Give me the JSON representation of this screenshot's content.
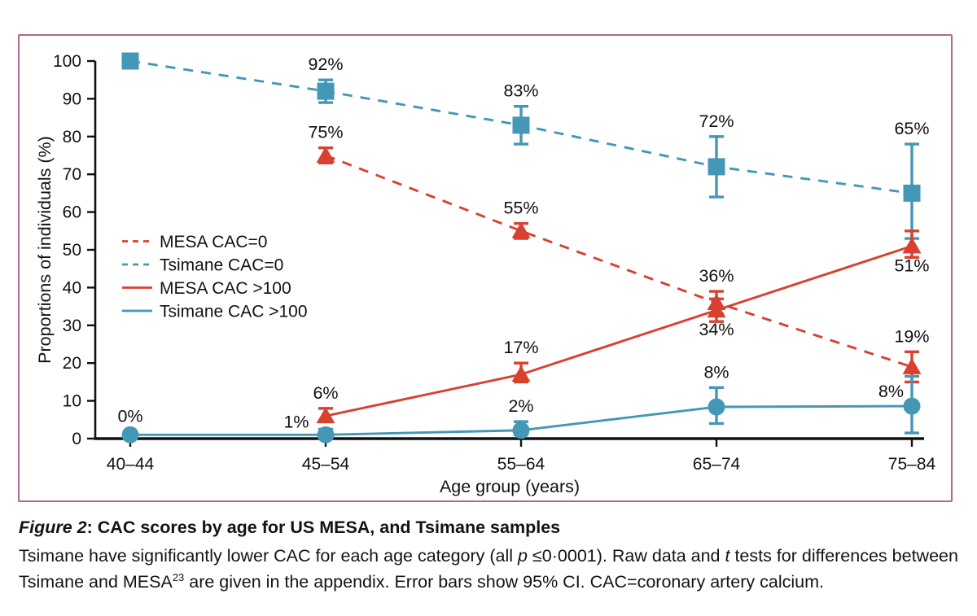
{
  "caption": {
    "figure_label": "Figure 2",
    "title_rest": ": CAC scores by age for US MESA, and Tsimane samples",
    "body_1": "Tsimane have significantly lower CAC for each age category (all ",
    "p_italic": "p",
    "body_2": " ≤0·0001). Raw data and ",
    "t_italic": "t",
    "body_3": " tests for differences between Tsimane and MESA",
    "superscript": "23",
    "body_4": " are given in the appendix. Error bars show 95% CI. CAC=coronary artery calcium."
  },
  "panel": {
    "border_color": "#b2688f",
    "background": "#ffffff"
  },
  "chart_data": {
    "type": "line",
    "title": "",
    "xlabel": "Age group (years)",
    "ylabel": "Proportions of individuals (%)",
    "categories": [
      "40–44",
      "45–54",
      "55–64",
      "65–74",
      "75–84"
    ],
    "ylim": [
      0,
      100
    ],
    "y_ticks": [
      0,
      10,
      20,
      30,
      40,
      50,
      60,
      70,
      80,
      90,
      100
    ],
    "grid": false,
    "legend_position": "middle-left",
    "error_bars": "95% CI",
    "colors": {
      "mesa_red": "#d8412f",
      "tsimane_blue": "#4497b5",
      "axis_black": "#111111"
    },
    "series": [
      {
        "name": "MESA CAC=0",
        "color": "#d8412f",
        "dashed": true,
        "marker": "triangle",
        "points": [
          {
            "x": 1,
            "v": 75,
            "ci": [
              73,
              77
            ],
            "label": "75%",
            "label_pos": "above"
          },
          {
            "x": 2,
            "v": 55,
            "ci": [
              53,
              57
            ],
            "label": "55%",
            "label_pos": "above"
          },
          {
            "x": 3,
            "v": 36,
            "ci": [
              33,
              39
            ],
            "label": "36%",
            "label_pos": "above"
          },
          {
            "x": 4,
            "v": 19,
            "ci": [
              15,
              23
            ],
            "label": "19%",
            "label_pos": "above"
          }
        ]
      },
      {
        "name": "Tsimane CAC=0",
        "color": "#4497b5",
        "dashed": true,
        "marker": "square",
        "points": [
          {
            "x": 0,
            "v": 100,
            "ci": null,
            "label": null,
            "label_pos": "above"
          },
          {
            "x": 1,
            "v": 92,
            "ci": [
              89,
              95
            ],
            "label": "92%",
            "label_pos": "above"
          },
          {
            "x": 2,
            "v": 83,
            "ci": [
              78,
              88
            ],
            "label": "83%",
            "label_pos": "above"
          },
          {
            "x": 3,
            "v": 72,
            "ci": [
              64,
              80
            ],
            "label": "72%",
            "label_pos": "above"
          },
          {
            "x": 4,
            "v": 65,
            "ci": [
              53,
              78
            ],
            "label": "65%",
            "label_pos": "above"
          }
        ]
      },
      {
        "name": "MESA CAC >100",
        "color": "#d8412f",
        "dashed": false,
        "marker": "triangle",
        "points": [
          {
            "x": 1,
            "v": 6,
            "ci": [
              4.5,
              8
            ],
            "label": "6%",
            "label_pos": "above"
          },
          {
            "x": 2,
            "v": 17,
            "ci": [
              15,
              20
            ],
            "label": "17%",
            "label_pos": "above"
          },
          {
            "x": 3,
            "v": 34,
            "ci": [
              31,
              37
            ],
            "label": "34%",
            "label_pos": "below"
          },
          {
            "x": 4,
            "v": 51,
            "ci": [
              48,
              55
            ],
            "label": "51%",
            "label_pos": "below"
          }
        ]
      },
      {
        "name": "Tsimane CAC >100",
        "color": "#4497b5",
        "dashed": false,
        "marker": "circle",
        "points": [
          {
            "x": 0,
            "v": 0,
            "plot_v": 1,
            "ci": [
              0,
              1.8
            ],
            "label": "0%",
            "label_pos": "above"
          },
          {
            "x": 1,
            "v": 1,
            "ci": [
              0,
              2.5
            ],
            "label": "1%",
            "label_pos": "above-left"
          },
          {
            "x": 2,
            "v": 2,
            "plot_v": 2.2,
            "ci": [
              1,
              4.5
            ],
            "label": "2%",
            "label_pos": "above"
          },
          {
            "x": 3,
            "v": 8,
            "plot_v": 8.4,
            "ci": [
              4,
              13.5
            ],
            "label": "8%",
            "label_pos": "above"
          },
          {
            "x": 4,
            "v": 8,
            "plot_v": 8.6,
            "ci": [
              1.5,
              16.5
            ],
            "label": "8%",
            "label_pos": "left"
          }
        ]
      }
    ]
  }
}
